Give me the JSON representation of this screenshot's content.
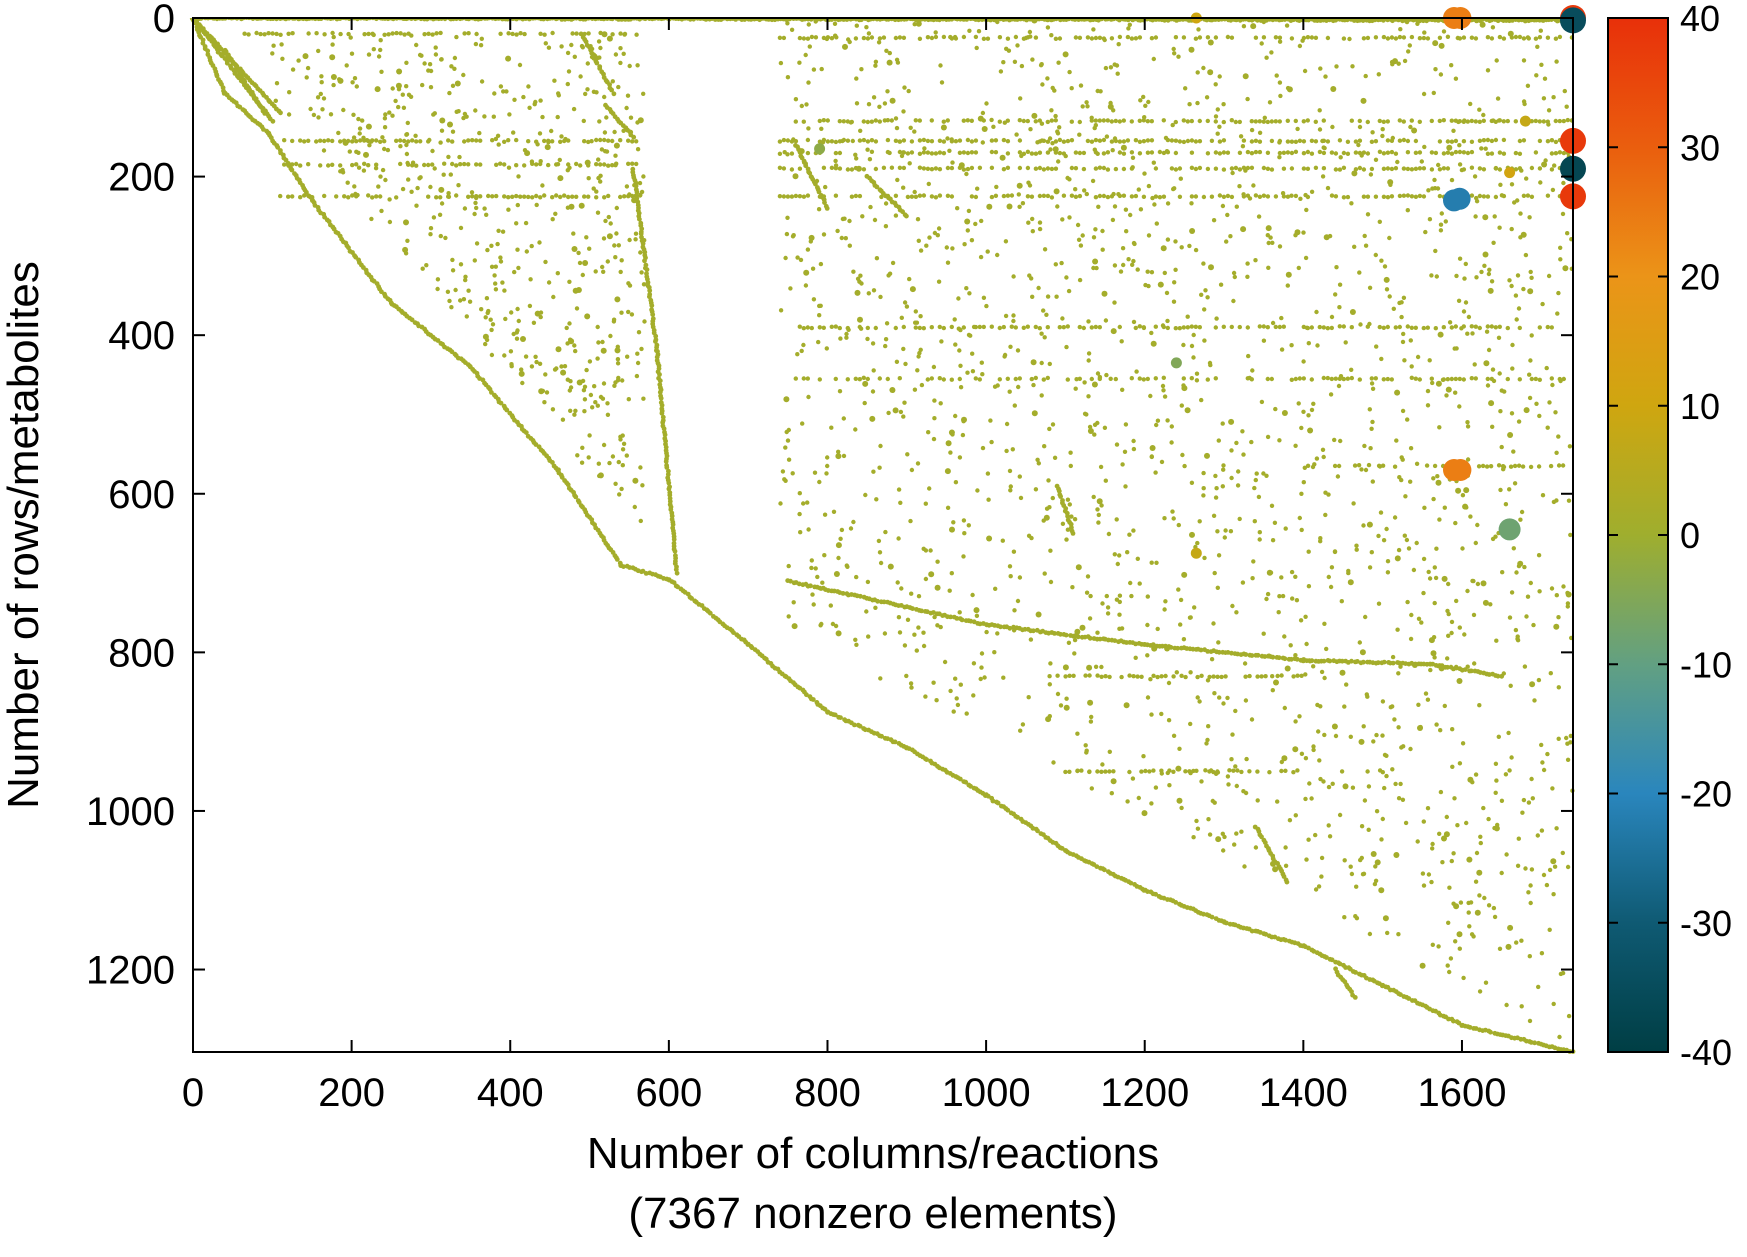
{
  "chart_data": {
    "type": "scatter",
    "title": "",
    "xlabel": "Number of columns/reactions",
    "xlabel_sub": "(7367 nonzero elements)",
    "ylabel": "Number of rows/metabolites",
    "xlim": [
      0,
      1740
    ],
    "ylim": [
      1304,
      0
    ],
    "y_inverted": true,
    "x_ticks": [
      "0",
      "200",
      "400",
      "600",
      "800",
      "1000",
      "1200",
      "1400",
      "1600"
    ],
    "y_ticks": [
      "0",
      "200",
      "400",
      "600",
      "800",
      "1000",
      "1200"
    ],
    "grid": false,
    "colorbar": {
      "range": [
        -40,
        40
      ],
      "ticks": [
        "40",
        "30",
        "20",
        "10",
        "0",
        "-10",
        "-20",
        "-30",
        "-40"
      ],
      "colors": [
        "#003e44",
        "#0f5a73",
        "#2a86bd",
        "#62a082",
        "#9fae2e",
        "#cfa610",
        "#eb9418",
        "#ea5e0e",
        "#e8300a"
      ]
    },
    "marker_color_zero": "#9fae2e",
    "lines": [
      {
        "x0": 0,
        "y0": 0,
        "x1": 40,
        "y1": 95,
        "value": 1
      },
      {
        "x0": 40,
        "y0": 95,
        "x1": 95,
        "y1": 145,
        "value": 1
      },
      {
        "x0": 95,
        "y0": 145,
        "x1": 150,
        "y1": 230,
        "value": 1
      },
      {
        "x0": 150,
        "y0": 230,
        "x1": 250,
        "y1": 360,
        "value": 1
      },
      {
        "x0": 250,
        "y0": 360,
        "x1": 350,
        "y1": 440,
        "value": 1
      },
      {
        "x0": 350,
        "y0": 440,
        "x1": 460,
        "y1": 570,
        "value": 1
      },
      {
        "x0": 460,
        "y0": 570,
        "x1": 540,
        "y1": 690,
        "value": 1
      },
      {
        "x0": 540,
        "y0": 690,
        "x1": 600,
        "y1": 708,
        "value": 1
      },
      {
        "x0": 600,
        "y0": 708,
        "x1": 700,
        "y1": 790,
        "value": 1
      },
      {
        "x0": 700,
        "y0": 790,
        "x1": 800,
        "y1": 875,
        "value": 1
      },
      {
        "x0": 800,
        "y0": 875,
        "x1": 900,
        "y1": 920,
        "value": 1
      },
      {
        "x0": 900,
        "y0": 920,
        "x1": 1000,
        "y1": 980,
        "value": 1
      },
      {
        "x0": 1000,
        "y0": 980,
        "x1": 1100,
        "y1": 1050,
        "value": 1
      },
      {
        "x0": 1100,
        "y0": 1050,
        "x1": 1200,
        "y1": 1100,
        "value": 1
      },
      {
        "x0": 1200,
        "y0": 1100,
        "x1": 1300,
        "y1": 1140,
        "value": 1
      },
      {
        "x0": 1300,
        "y0": 1140,
        "x1": 1400,
        "y1": 1170,
        "value": 1
      },
      {
        "x0": 1400,
        "y0": 1170,
        "x1": 1500,
        "y1": 1220,
        "value": 1
      },
      {
        "x0": 1500,
        "y0": 1220,
        "x1": 1600,
        "y1": 1270,
        "value": 1
      },
      {
        "x0": 1600,
        "y0": 1270,
        "x1": 1740,
        "y1": 1304,
        "value": 1
      },
      {
        "x0": 0,
        "y0": 0,
        "x1": 100,
        "y1": 130,
        "value": 1
      },
      {
        "x0": 0,
        "y0": 0,
        "x1": 110,
        "y1": 120,
        "value": 1
      },
      {
        "x0": 40,
        "y0": 40,
        "x1": 90,
        "y1": 120,
        "value": 1
      },
      {
        "x0": 490,
        "y0": 20,
        "x1": 530,
        "y1": 95,
        "value": 1
      },
      {
        "x0": 520,
        "y0": 110,
        "x1": 555,
        "y1": 150,
        "value": 1
      },
      {
        "x0": 555,
        "y0": 190,
        "x1": 585,
        "y1": 420,
        "value": 1
      },
      {
        "x0": 585,
        "y0": 420,
        "x1": 610,
        "y1": 700,
        "value": 1
      },
      {
        "x0": 750,
        "y0": 710,
        "x1": 1000,
        "y1": 765,
        "value": 1
      },
      {
        "x0": 1000,
        "y0": 765,
        "x1": 1200,
        "y1": 790,
        "value": 1
      },
      {
        "x0": 1200,
        "y0": 790,
        "x1": 1400,
        "y1": 810,
        "value": 1
      },
      {
        "x0": 1400,
        "y0": 810,
        "x1": 1560,
        "y1": 815,
        "value": 1
      },
      {
        "x0": 1560,
        "y0": 815,
        "x1": 1650,
        "y1": 830,
        "value": 1
      },
      {
        "x0": 0,
        "y0": 0,
        "x1": 1740,
        "y1": 3,
        "value": 1
      },
      {
        "x0": 760,
        "y0": 160,
        "x1": 800,
        "y1": 240,
        "value": 1
      },
      {
        "x0": 850,
        "y0": 200,
        "x1": 900,
        "y1": 250,
        "value": 1
      },
      {
        "x0": 1090,
        "y0": 590,
        "x1": 1110,
        "y1": 650,
        "value": 1
      },
      {
        "x0": 1340,
        "y0": 1020,
        "x1": 1380,
        "y1": 1090,
        "value": 1
      },
      {
        "x0": 1440,
        "y0": 1200,
        "x1": 1465,
        "y1": 1235,
        "value": 1
      }
    ],
    "bands": [
      {
        "y": 0,
        "x0": 0,
        "x1": 1740,
        "value": 1
      },
      {
        "y": 20,
        "x0": 60,
        "x1": 560,
        "value": 1
      },
      {
        "y": 25,
        "x0": 740,
        "x1": 1740,
        "value": 1
      },
      {
        "y": 130,
        "x0": 760,
        "x1": 1740,
        "value": 1
      },
      {
        "y": 155,
        "x0": 110,
        "x1": 560,
        "value": 1
      },
      {
        "y": 155,
        "x0": 740,
        "x1": 1740,
        "value": 1
      },
      {
        "y": 170,
        "x0": 740,
        "x1": 1740,
        "value": 1
      },
      {
        "y": 185,
        "x0": 110,
        "x1": 560,
        "value": 1
      },
      {
        "y": 190,
        "x0": 740,
        "x1": 1740,
        "value": 1
      },
      {
        "y": 225,
        "x0": 110,
        "x1": 560,
        "value": 1
      },
      {
        "y": 225,
        "x0": 740,
        "x1": 1740,
        "value": 1
      },
      {
        "y": 390,
        "x0": 760,
        "x1": 1740,
        "value": 1
      },
      {
        "y": 455,
        "x0": 760,
        "x1": 1740,
        "value": 1
      },
      {
        "y": 565,
        "x0": 1440,
        "x1": 1740,
        "value": 1
      },
      {
        "y": 830,
        "x0": 1080,
        "x1": 1400,
        "value": 1
      },
      {
        "y": 950,
        "x0": 1100,
        "x1": 1400,
        "value": 1
      }
    ],
    "scatter_random": {
      "count": 2400,
      "value": 1,
      "note": ""
    },
    "big_points": [
      {
        "x": 1590,
        "y": 0,
        "value": 24
      },
      {
        "x": 1598,
        "y": 0,
        "value": 24
      },
      {
        "x": 1740,
        "y": 0,
        "value": 38
      },
      {
        "x": 1740,
        "y": 3,
        "value": -35
      },
      {
        "x": 1740,
        "y": 155,
        "value": 38
      },
      {
        "x": 1740,
        "y": 190,
        "value": -37
      },
      {
        "x": 1740,
        "y": 225,
        "value": 38
      },
      {
        "x": 1590,
        "y": 230,
        "value": -22
      },
      {
        "x": 1597,
        "y": 228,
        "value": -22
      },
      {
        "x": 1590,
        "y": 570,
        "value": 24
      },
      {
        "x": 1598,
        "y": 570,
        "value": 24
      },
      {
        "x": 1660,
        "y": 645,
        "value": -8
      }
    ],
    "mid_points": [
      {
        "x": 1265,
        "y": 0,
        "value": 10
      },
      {
        "x": 1265,
        "y": 675,
        "value": 8
      },
      {
        "x": 1660,
        "y": 195,
        "value": 11
      },
      {
        "x": 1240,
        "y": 435,
        "value": -5
      },
      {
        "x": 790,
        "y": 165,
        "value": -3
      },
      {
        "x": 1680,
        "y": 130,
        "value": 8
      }
    ]
  }
}
